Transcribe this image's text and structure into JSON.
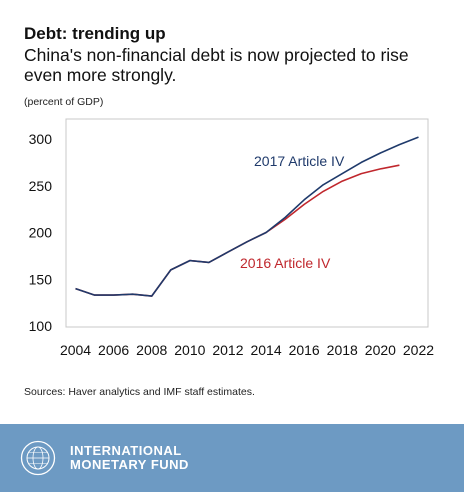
{
  "header": {
    "title": "Debt: trending up",
    "subtitle": "China's non-financial debt is now projected to rise even more strongly.",
    "unit_note": "(percent of GDP)"
  },
  "chart_data": {
    "type": "line",
    "x": [
      2004,
      2005,
      2006,
      2007,
      2008,
      2009,
      2010,
      2011,
      2012,
      2013,
      2014,
      2015,
      2016,
      2017,
      2018,
      2019,
      2020,
      2021,
      2022
    ],
    "xticks": [
      "2004",
      "2006",
      "2008",
      "2010",
      "2012",
      "2014",
      "2016",
      "2018",
      "2020",
      "2022"
    ],
    "yticks": [
      "100",
      "150",
      "200",
      "250",
      "300"
    ],
    "xlim": [
      2003.5,
      2022.5
    ],
    "ylim": [
      100,
      300
    ],
    "grid": false,
    "series": [
      {
        "name": "2016 Article IV",
        "color": "#c0272d",
        "values": [
          140,
          133,
          133,
          134,
          132,
          160,
          170,
          168,
          179,
          190,
          200,
          214,
          230,
          244,
          255,
          263,
          268,
          272,
          null
        ]
      },
      {
        "name": "2017 Article IV",
        "color": "#1f3a6b",
        "values": [
          140,
          133,
          133,
          134,
          132,
          160,
          170,
          168,
          179,
          190,
          200,
          216,
          235,
          251,
          263,
          275,
          285,
          294,
          302
        ]
      }
    ]
  },
  "footer": {
    "source": "Sources: Haver analytics and IMF staff estimates.",
    "org_line1": "INTERNATIONAL",
    "org_line2": "MONETARY FUND",
    "footer_color": "#6d9ac3"
  }
}
